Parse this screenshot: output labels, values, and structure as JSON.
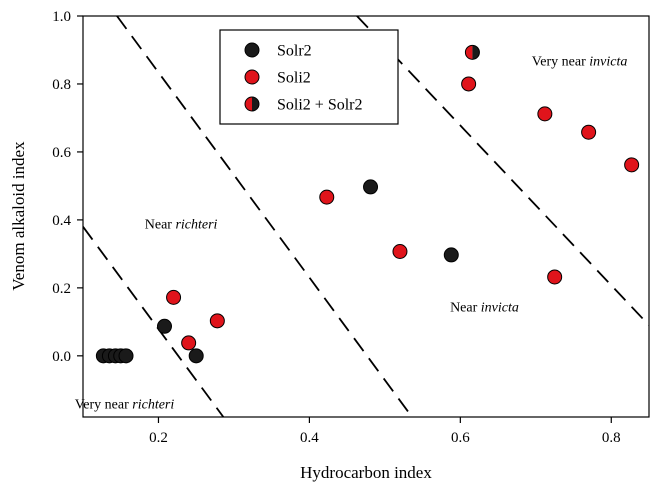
{
  "chart_data": {
    "type": "scatter",
    "xlabel": "Hydrocarbon index",
    "ylabel": "Venom alkaloid index",
    "xlim": [
      0.1,
      0.85
    ],
    "ylim": [
      -0.18,
      1.0
    ],
    "xticks": [
      0.2,
      0.4,
      0.6,
      0.8
    ],
    "xtick_labels": [
      "0.2",
      "0.4",
      "0.6",
      "0.8"
    ],
    "yticks": [
      0.0,
      0.2,
      0.4,
      0.6,
      0.8,
      1.0
    ],
    "ytick_labels": [
      "0.0",
      "0.2",
      "0.4",
      "0.6",
      "0.8",
      "1.0"
    ],
    "grid": false,
    "legend_position": "top-center",
    "series": [
      {
        "name": "Solr2",
        "color": "#1a1a1a",
        "marker": "circle",
        "points": [
          {
            "x": 0.127,
            "y": 0.0
          },
          {
            "x": 0.135,
            "y": 0.0
          },
          {
            "x": 0.143,
            "y": 0.0
          },
          {
            "x": 0.15,
            "y": 0.0
          },
          {
            "x": 0.157,
            "y": 0.0
          },
          {
            "x": 0.208,
            "y": 0.087
          },
          {
            "x": 0.25,
            "y": 0.0
          },
          {
            "x": 0.481,
            "y": 0.497
          },
          {
            "x": 0.588,
            "y": 0.297
          }
        ]
      },
      {
        "name": "Soli2",
        "color": "#e0141b",
        "marker": "circle",
        "points": [
          {
            "x": 0.22,
            "y": 0.172
          },
          {
            "x": 0.24,
            "y": 0.038
          },
          {
            "x": 0.278,
            "y": 0.103
          },
          {
            "x": 0.423,
            "y": 0.467
          },
          {
            "x": 0.52,
            "y": 0.307
          },
          {
            "x": 0.611,
            "y": 0.8
          },
          {
            "x": 0.712,
            "y": 0.712
          },
          {
            "x": 0.725,
            "y": 0.232
          },
          {
            "x": 0.77,
            "y": 0.658
          },
          {
            "x": 0.827,
            "y": 0.562
          }
        ]
      },
      {
        "name": "Soli2 + Solr2",
        "color": "#e0141b",
        "color2": "#1a1a1a",
        "marker": "half-circle",
        "points": [
          {
            "x": 0.616,
            "y": 0.893
          }
        ]
      }
    ],
    "boundaries": [
      {
        "style": "dashed",
        "x1": 0.1,
        "y1": 0.38,
        "x2": 0.286,
        "y2": -0.18
      },
      {
        "style": "dashed",
        "x1": 0.145,
        "y1": 1.0,
        "x2": 0.536,
        "y2": -0.18
      },
      {
        "style": "dashed",
        "x1": 0.463,
        "y1": 1.0,
        "x2": 0.85,
        "y2": 0.09
      }
    ],
    "annotations": [
      {
        "prefix": "Very near ",
        "italic": "richteri",
        "x": 0.155,
        "y": -0.155
      },
      {
        "prefix": "Near ",
        "italic": "richteri",
        "x": 0.23,
        "y": 0.375
      },
      {
        "prefix": "Near ",
        "italic": "invicta",
        "x": 0.632,
        "y": 0.13
      },
      {
        "prefix": "Very near ",
        "italic": "invicta",
        "x": 0.758,
        "y": 0.855
      }
    ]
  }
}
